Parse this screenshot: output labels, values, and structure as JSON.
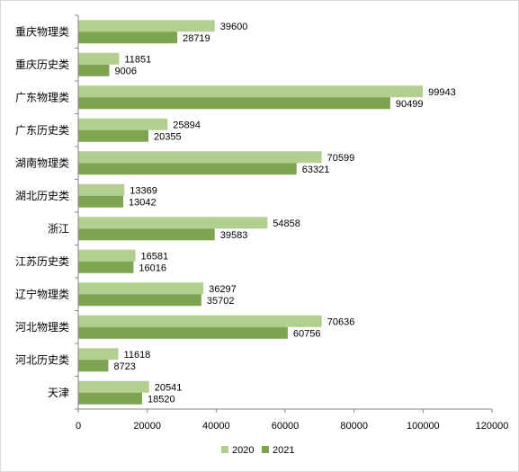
{
  "chart_data": {
    "type": "bar",
    "orientation": "horizontal",
    "categories": [
      "重庆物理类",
      "重庆历史类",
      "广东物理类",
      "广东历史类",
      "湖南物理类",
      "湖北历史类",
      "浙江",
      "江苏历史类",
      "辽宁物理类",
      "河北物理类",
      "河北历史类",
      "天津"
    ],
    "series": [
      {
        "name": "2020",
        "color": "#b3cf8f",
        "values": [
          39600,
          11851,
          99943,
          25894,
          70599,
          13369,
          54858,
          16581,
          36297,
          70636,
          11618,
          20541
        ]
      },
      {
        "name": "2021",
        "color": "#7ca451",
        "values": [
          28719,
          9006,
          90499,
          20355,
          63321,
          13042,
          39583,
          16016,
          35702,
          60756,
          8723,
          18520
        ]
      }
    ],
    "xlim": [
      0,
      120000
    ],
    "xticks": [
      0,
      20000,
      40000,
      60000,
      80000,
      100000,
      120000
    ],
    "title": "",
    "xlabel": "",
    "ylabel": "",
    "grid": false,
    "legend_position": "bottom"
  }
}
